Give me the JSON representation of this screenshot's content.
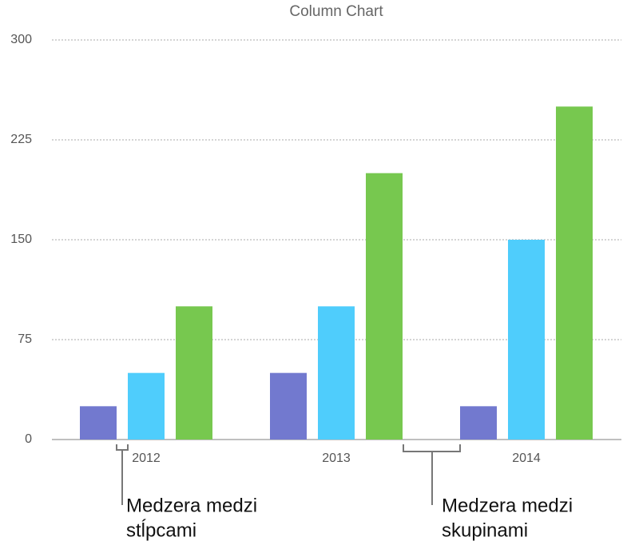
{
  "chart_data": {
    "type": "bar",
    "title": "Column Chart",
    "categories": [
      "2012",
      "2013",
      "2014"
    ],
    "series": [
      {
        "color": "#7279cf",
        "values": [
          25,
          50,
          25
        ]
      },
      {
        "color": "#4fcdfc",
        "values": [
          50,
          100,
          150
        ]
      },
      {
        "color": "#77c84f",
        "values": [
          100,
          200,
          250
        ]
      }
    ],
    "ylim": [
      0,
      300
    ],
    "yticks": [
      0,
      75,
      150,
      225,
      300
    ],
    "grid": true,
    "annotations": [
      {
        "lines": [
          "Medzera medzi",
          "stĺpcami"
        ]
      },
      {
        "lines": [
          "Medzera medzi",
          "skupinami"
        ]
      }
    ]
  }
}
